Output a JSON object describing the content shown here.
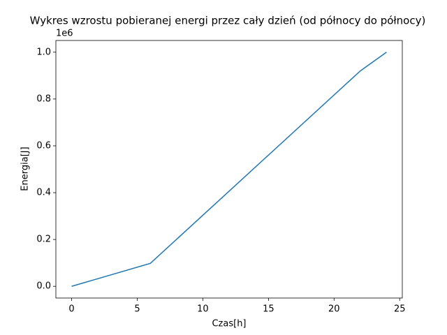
{
  "chart_data": {
    "type": "line",
    "title": "Wykres wzrostu pobieranej energi przez cały dzień (od północy do północy)",
    "xlabel": "Czas[h]",
    "ylabel": "Energia[J]",
    "y_offset_label": "1e6",
    "x": [
      0,
      6,
      22,
      24
    ],
    "series": [
      {
        "color": "#1f77b4",
        "values": [
          0,
          0.098,
          0.92,
          1.0
        ]
      }
    ],
    "xlim": [
      -1.2,
      25.2
    ],
    "ylim": [
      -0.05,
      1.05
    ],
    "xticks": [
      0,
      5,
      10,
      15,
      20,
      25
    ],
    "yticks": [
      {
        "value": 0,
        "label": "0.0"
      },
      {
        "value": 0.2,
        "label": "0.2"
      },
      {
        "value": 0.4,
        "label": "0.4"
      },
      {
        "value": 0.6,
        "label": "0.6"
      },
      {
        "value": 0.8,
        "label": "0.8"
      },
      {
        "value": 1.0,
        "label": "1.0"
      }
    ]
  }
}
